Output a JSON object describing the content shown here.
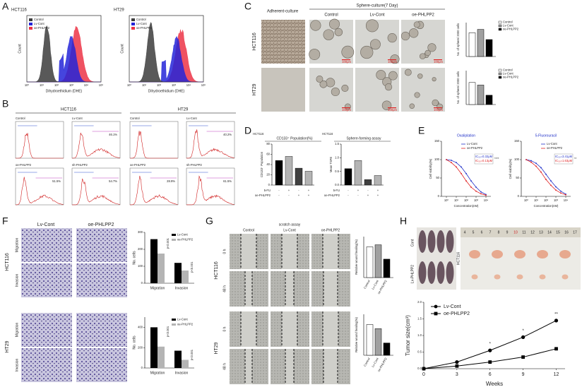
{
  "A": {
    "letter": "A",
    "xlabel": "Dihydroethidium (DHE)",
    "ylabel": "Count",
    "plots": [
      "HCT116",
      "HT29"
    ],
    "legend": [
      {
        "name": "Control",
        "color": "#3c3c3c"
      },
      {
        "name": "Lv-Cont",
        "color": "#2424d8"
      },
      {
        "name": "oe-PHLPP2",
        "color": "#ec3446"
      }
    ],
    "xticks": [
      "10⁰",
      "10¹",
      "10²",
      "10³",
      "10⁴",
      "10⁵"
    ]
  },
  "B": {
    "letter": "B",
    "groups": [
      {
        "title": "HCT116",
        "cells": [
          {
            "label": "Control"
          },
          {
            "label": "Lv-Cont",
            "pct": "46.1%"
          },
          {
            "label": "oe-PHLPP2",
            "pct": "51.5%"
          },
          {
            "label": "sh-PHLPP2",
            "pct": "54.7%"
          }
        ]
      },
      {
        "title": "HT29",
        "cells": [
          {
            "label": "Control"
          },
          {
            "label": "Lv-Cont",
            "pct": "40.2%"
          },
          {
            "label": "oe-PHLPP2",
            "pct": "28.9%"
          },
          {
            "label": "sh-PHLPP2",
            "pct": "61.5%"
          }
        ]
      }
    ]
  },
  "C": {
    "letter": "C",
    "adherent": "Adherent-culture",
    "sphere": "Sphere-culture(7 Day)",
    "columns": [
      "Control",
      "Lv-Cont",
      "oe-PHLPP2"
    ],
    "rows": [
      "HCT116",
      "HT29"
    ],
    "scale": "100μm",
    "ylabel": "No. of sphere/ 2000 cells",
    "legend": [
      {
        "name": "Control",
        "color": "#ffffff"
      },
      {
        "name": "Lv-Cont",
        "color": "#a0a0a0"
      },
      {
        "name": "oe-PHLPP2",
        "color": "#000000"
      }
    ],
    "charts": [
      {
        "values": [
          28,
          32,
          20
        ],
        "ylim": [
          0,
          40
        ]
      },
      {
        "values": [
          26,
          23,
          11
        ],
        "ylim": [
          0,
          40
        ]
      }
    ]
  },
  "D": {
    "letter": "D",
    "cell": "HCT116",
    "colors": [
      "#000000",
      "#b4b4b4",
      "#404040",
      "#b4b4b4"
    ],
    "conditions": [
      {
        "name": "5-FU",
        "signs": [
          "-",
          "+",
          "-",
          "+"
        ]
      },
      {
        "name": "oe-PHLPP2",
        "signs": [
          "-",
          "-",
          "+",
          "+"
        ]
      }
    ],
    "charts": [
      {
        "title": "CD133⁺ Population(%)",
        "ylabel": "CD133⁺ Population",
        "values": [
          48,
          56,
          33,
          27
        ],
        "ylim": [
          0,
          80
        ],
        "yticks": [
          0,
          20,
          40,
          60,
          80
        ]
      },
      {
        "title": "Sphere-forming assay",
        "ylabel": "Mean TSFE",
        "values": [
          0.6,
          0.9,
          0.2,
          0.35
        ],
        "ylim": [
          0,
          1.5
        ],
        "yticks": [
          {
            "value": 0,
            "label": "0.0"
          },
          0.5,
          {
            "value": 1,
            "label": "1.0"
          },
          1.5
        ]
      }
    ]
  },
  "E": {
    "letter": "E",
    "ylabel": "Cell viability(%)",
    "xlabel": "Concentration(nM)",
    "ylim": [
      0,
      150
    ],
    "yticks": [
      0,
      50,
      100,
      150
    ],
    "xlim": [
      -0.5,
      4.5
    ],
    "xticks": [
      {
        "value": 0,
        "label": "10⁰"
      },
      {
        "value": 1,
        "label": "10¹"
      },
      {
        "value": 2,
        "label": "10²"
      },
      {
        "value": 3,
        "label": "10³"
      },
      {
        "value": 4,
        "label": "10⁴"
      }
    ],
    "x": [
      0,
      0.5,
      1,
      1.5,
      2,
      2.5,
      3,
      3.5,
      4
    ],
    "charts": [
      {
        "title": "Oxaliplation",
        "ic50": [
          "IC₅₀=0.32μM",
          "IC₅₀=0.13μM"
        ],
        "sig": "****",
        "series": [
          {
            "name": "Lv-Cont",
            "color": "#2030c8",
            "values": [
              100,
              98,
              92,
              80,
              62,
              42,
              25,
              12,
              5
            ]
          },
          {
            "name": "oe-PHLPP2",
            "color": "#e02020",
            "values": [
              100,
              92,
              80,
              62,
              42,
              25,
              14,
              7,
              3
            ]
          }
        ]
      },
      {
        "title": "5-Fluorouracil",
        "ic50": [
          "IC₅₀=3.41μM",
          "IC₅₀=1.63μM"
        ],
        "sig": "**",
        "series": [
          {
            "name": "Lv-Cont",
            "color": "#2030c8",
            "values": [
              100,
              97,
              90,
              78,
              60,
              42,
              26,
              14,
              6
            ]
          },
          {
            "name": "oe-PHLPP2",
            "color": "#e02020",
            "values": [
              100,
              93,
              82,
              66,
              46,
              30,
              17,
              9,
              4
            ]
          }
        ]
      }
    ]
  },
  "F": {
    "letter": "F",
    "columns": [
      "Lv-Cont",
      "oe-PHLPP2"
    ],
    "ylabel": "No. cells",
    "categories": [
      "Migration",
      "Invasion"
    ],
    "groups": [
      {
        "cell": "HCT116",
        "rows": [
          "Migration",
          "Invasion"
        ],
        "ylim": [
          0,
          300
        ],
        "yticks": [
          0,
          100,
          200,
          300
        ],
        "p": [
          "p<0.001",
          "p<0.001"
        ],
        "series": [
          {
            "name": "Lv-Cont",
            "color": "#000000",
            "values": [
              260,
              120
            ]
          },
          {
            "name": "oe-PHLPP2",
            "color": "#b4b4b4",
            "values": [
              175,
              75
            ]
          }
        ]
      },
      {
        "cell": "HT29",
        "rows": [
          "Migration",
          "Invasion"
        ],
        "ylim": [
          0,
          500
        ],
        "yticks": [
          0,
          200,
          400
        ],
        "p": [
          "p<0.001",
          "p<0.001"
        ],
        "series": [
          {
            "name": "Lv-Cont",
            "color": "#000000",
            "values": [
              400,
              170
            ]
          },
          {
            "name": "oe-PHLPP2",
            "color": "#b4b4b4",
            "values": [
              210,
              80
            ]
          }
        ]
      }
    ]
  },
  "G": {
    "letter": "G",
    "title": "scratch assay",
    "columns": [
      "Control",
      "Lv-Cont",
      "oe-PHLPP2"
    ],
    "rows": [
      "0 h",
      "48 h"
    ],
    "ylabel": "Relative wound healing(%)",
    "categories": [
      "Control",
      "Lv-Cont",
      "oe-PHLPP2"
    ],
    "colors": [
      "#ffffff",
      "#a0a0a0",
      "#000000"
    ],
    "groups": [
      {
        "cell": "HCT116",
        "values": [
          0.75,
          0.8,
          0.45
        ],
        "ylim": [
          0,
          1
        ]
      },
      {
        "cell": "HT29",
        "values": [
          0.75,
          0.65,
          0.3
        ],
        "ylim": [
          0,
          1
        ]
      }
    ]
  },
  "H": {
    "letter": "H",
    "cell": "HCT116",
    "rows": [
      "Cont",
      "Lv-PHLPP2"
    ],
    "ruler": [
      "4",
      "5",
      "6",
      "7",
      "8",
      "9",
      "10",
      "11",
      "12",
      "13",
      "14",
      "15",
      "16",
      "17"
    ],
    "chart": {
      "ylabel": "Tumor size(cm³)",
      "xlabel": "Weeks",
      "x": [
        0,
        3,
        6,
        9,
        12
      ],
      "xlim": [
        0,
        12.8
      ],
      "xticks": [
        0,
        3,
        6,
        9,
        12
      ],
      "ylim": [
        0,
        2
      ],
      "yticks": [
        {
          "value": 0,
          "label": "0.0"
        },
        0.5,
        {
          "value": 1,
          "label": "1.0"
        },
        1.5,
        {
          "value": 2,
          "label": "2.0"
        }
      ],
      "series": [
        {
          "name": "Lv-Cont",
          "color": "#000000",
          "values": [
            0,
            0.2,
            0.55,
            0.95,
            1.45
          ]
        },
        {
          "name": "oe-PHLPP2",
          "color": "#000000",
          "values": [
            0,
            0.08,
            0.2,
            0.35,
            0.6
          ]
        }
      ],
      "annotations": [
        "*",
        "*",
        "**"
      ]
    }
  }
}
